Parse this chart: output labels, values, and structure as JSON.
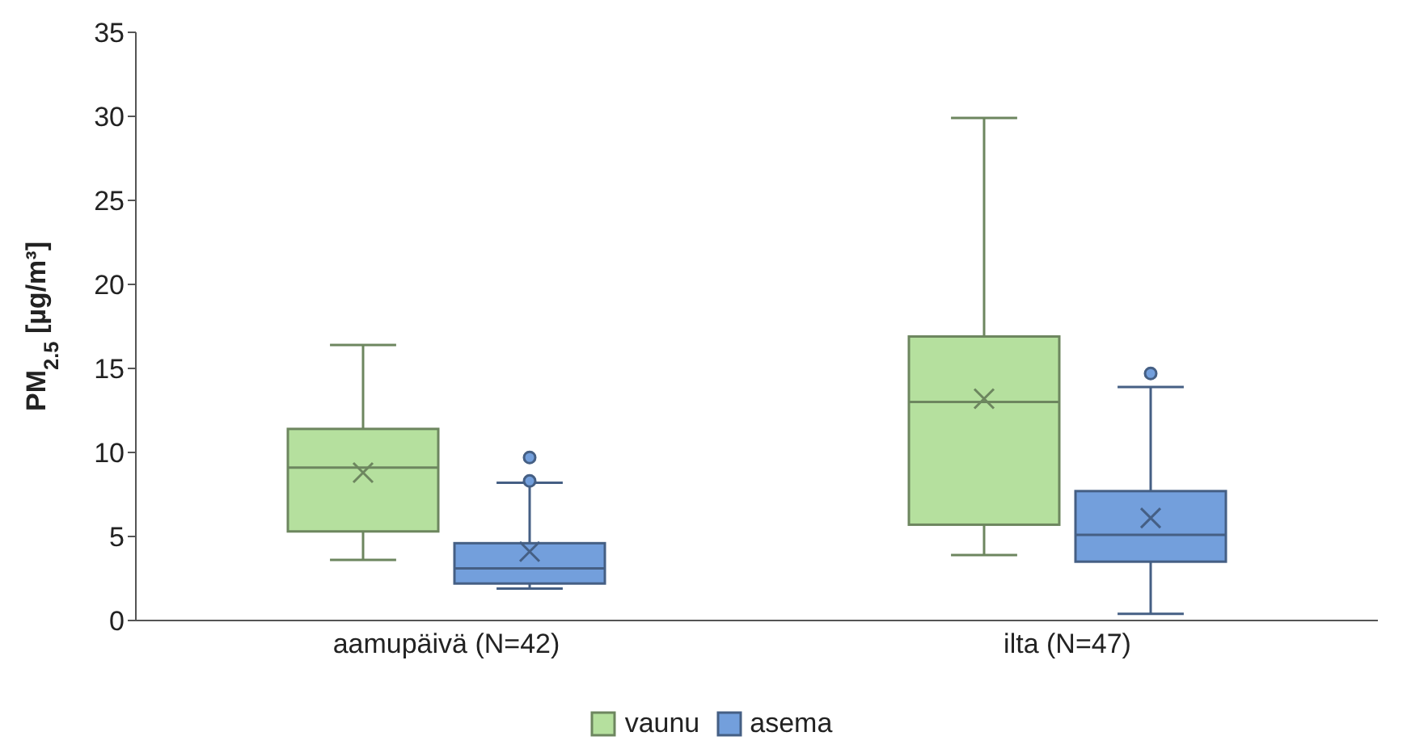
{
  "chart_data": {
    "type": "box",
    "ylabel": "PM$_{2.5}$ [µg/m³]",
    "categories": [
      "aamupäivä (N=42)",
      "ilta (N=47)"
    ],
    "ylim": [
      0,
      35
    ],
    "yticks": [
      0,
      5,
      10,
      15,
      20,
      25,
      30,
      35
    ],
    "grid": false,
    "legend": "bottom",
    "series": [
      {
        "name": "vaunu",
        "color": "#b5e09e",
        "boxes": [
          {
            "low": 3.6,
            "q1": 5.3,
            "median": 9.1,
            "q3": 11.4,
            "high": 16.4,
            "mean": 8.8
          },
          {
            "low": 3.9,
            "q1": 5.7,
            "median": 13.0,
            "q3": 16.9,
            "high": 29.9,
            "mean": 13.2
          }
        ]
      },
      {
        "name": "asema",
        "color": "#739fdc",
        "boxes": [
          {
            "low": 1.9,
            "q1": 2.2,
            "median": 3.1,
            "q3": 4.6,
            "high": 8.2,
            "mean": 4.1,
            "outliers": [
              8.3,
              9.7
            ]
          },
          {
            "low": 0.4,
            "q1": 3.5,
            "median": 5.1,
            "q3": 7.7,
            "high": 13.9,
            "mean": 6.1,
            "outliers": [
              14.7
            ]
          }
        ]
      }
    ]
  }
}
